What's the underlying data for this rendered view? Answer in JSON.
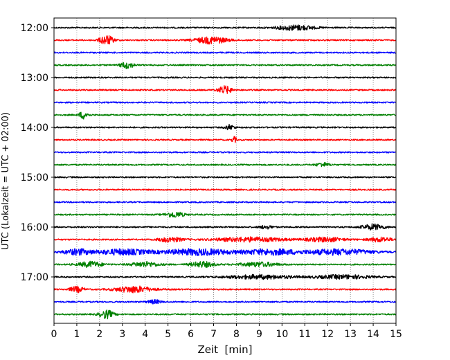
{
  "chart_data": {
    "type": "line",
    "title": "",
    "xlabel": "Zeit  [min]",
    "ylabel": "UTC (Lokalzeit = UTC + 02:00)",
    "xlim": [
      0,
      15
    ],
    "x_ticks": [
      "0",
      "1",
      "2",
      "3",
      "4",
      "5",
      "6",
      "7",
      "8",
      "9",
      "10",
      "11",
      "12",
      "13",
      "14",
      "15"
    ],
    "y_ticks": [
      "12:00",
      "13:00",
      "14:00",
      "15:00",
      "16:00",
      "17:00"
    ],
    "grid": "vertical dotted lines at each minute",
    "legend": "none",
    "trace_interval_minutes": 15,
    "color_cycle": [
      "#000000",
      "#ff0000",
      "#0000ff",
      "#008000"
    ],
    "series": [
      {
        "start": "12:00",
        "color": "#000000",
        "bursts": [
          [
            10.6,
            0.8,
            0.8
          ]
        ]
      },
      {
        "start": "12:15",
        "color": "#ff0000",
        "bursts": [
          [
            2.3,
            0.3,
            1.5
          ],
          [
            6.9,
            0.7,
            1.1
          ]
        ]
      },
      {
        "start": "12:30",
        "color": "#0000ff",
        "bursts": []
      },
      {
        "start": "12:45",
        "color": "#008000",
        "bursts": [
          [
            3.2,
            0.3,
            1.0
          ]
        ]
      },
      {
        "start": "13:00",
        "color": "#000000",
        "bursts": []
      },
      {
        "start": "13:15",
        "color": "#ff0000",
        "bursts": [
          [
            7.5,
            0.3,
            1.2
          ]
        ]
      },
      {
        "start": "13:30",
        "color": "#0000ff",
        "bursts": []
      },
      {
        "start": "13:45",
        "color": "#008000",
        "bursts": [
          [
            1.3,
            0.2,
            1.2
          ]
        ]
      },
      {
        "start": "14:00",
        "color": "#000000",
        "bursts": [
          [
            7.7,
            0.2,
            0.8
          ]
        ]
      },
      {
        "start": "14:15",
        "color": "#ff0000",
        "bursts": [
          [
            7.9,
            0.1,
            1.0
          ]
        ]
      },
      {
        "start": "14:30",
        "color": "#0000ff",
        "bursts": []
      },
      {
        "start": "14:45",
        "color": "#008000",
        "bursts": [
          [
            11.8,
            0.3,
            0.6
          ]
        ]
      },
      {
        "start": "15:00",
        "color": "#000000",
        "bursts": []
      },
      {
        "start": "15:15",
        "color": "#ff0000",
        "bursts": []
      },
      {
        "start": "15:30",
        "color": "#0000ff",
        "bursts": []
      },
      {
        "start": "15:45",
        "color": "#008000",
        "bursts": [
          [
            5.3,
            0.4,
            0.9
          ]
        ]
      },
      {
        "start": "16:00",
        "color": "#000000",
        "bursts": [
          [
            14.0,
            0.5,
            0.9
          ],
          [
            9.3,
            0.3,
            0.5
          ]
        ]
      },
      {
        "start": "16:15",
        "color": "#ff0000",
        "bursts": [
          [
            5.1,
            0.5,
            0.8
          ],
          [
            8.6,
            1.5,
            0.7
          ],
          [
            11.9,
            0.8,
            0.7
          ],
          [
            14.3,
            0.5,
            0.7
          ]
        ]
      },
      {
        "start": "16:30",
        "color": "#0000ff",
        "bursts": [
          [
            1.0,
            0.6,
            0.9
          ],
          [
            3.0,
            1.2,
            0.9
          ],
          [
            6.3,
            1.5,
            1.0
          ],
          [
            9.5,
            1.2,
            0.9
          ],
          [
            12.5,
            1.5,
            0.9
          ]
        ]
      },
      {
        "start": "16:45",
        "color": "#008000",
        "bursts": [
          [
            1.6,
            0.5,
            0.9
          ],
          [
            4.0,
            0.6,
            0.8
          ],
          [
            6.5,
            0.5,
            0.9
          ],
          [
            9.0,
            0.8,
            0.7
          ]
        ]
      },
      {
        "start": "17:00",
        "color": "#000000",
        "bursts": [
          [
            9.0,
            1.5,
            0.6
          ],
          [
            12.7,
            1.2,
            0.6
          ]
        ]
      },
      {
        "start": "17:15",
        "color": "#ff0000",
        "bursts": [
          [
            1.0,
            0.3,
            0.9
          ],
          [
            3.5,
            0.8,
            1.0
          ]
        ]
      },
      {
        "start": "17:30",
        "color": "#0000ff",
        "bursts": [
          [
            4.4,
            0.3,
            0.6
          ]
        ]
      },
      {
        "start": "17:45",
        "color": "#008000",
        "bursts": [
          [
            2.3,
            0.3,
            1.3
          ]
        ]
      }
    ]
  }
}
